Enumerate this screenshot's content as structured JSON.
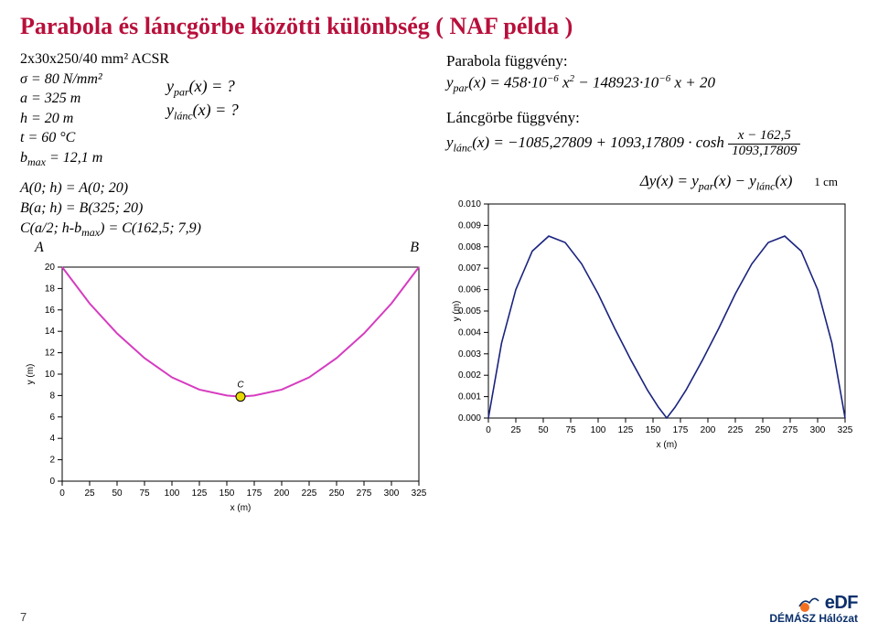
{
  "title": "Parabola és láncgörbe közötti különbség  ( NAF példa )",
  "left": {
    "spec": "2x30x250/40 mm² ACSR",
    "sigma": "σ = 80 N/mm²",
    "a": "a = 325 m",
    "h": "h = 20 m",
    "t": "t = 60 °C",
    "bmax": "bₘₐₓ = 12,1 m",
    "ypar_q": "y_par(x) = ?",
    "ylanc_q": "y_lánc(x) = ?",
    "ptA": "A(0; h) = A(0; 20)",
    "ptB": "B(a; h) = B(325; 20)",
    "ptC": "C(a/2; h-bₘₐₓ) = C(162,5; 7,9)",
    "A": "A",
    "B": "B",
    "C": "C",
    "chart": {
      "x_ticks": [
        0,
        25,
        50,
        75,
        100,
        125,
        150,
        175,
        200,
        225,
        250,
        275,
        300,
        325
      ],
      "y_ticks": [
        0,
        2,
        4,
        6,
        8,
        10,
        12,
        14,
        16,
        18,
        20
      ],
      "xlim": [
        0,
        325
      ],
      "ylim": [
        0,
        20
      ],
      "xlabel": "x (m)",
      "ylabel": "y (m)",
      "curve_color": "#d63cc0",
      "border_color": "#000000",
      "tick_color": "#000000",
      "marker_color": "#e6d800",
      "marker_stroke": "#000000",
      "series": [
        {
          "x": 0,
          "y": 20
        },
        {
          "x": 25,
          "y": 16.6
        },
        {
          "x": 50,
          "y": 13.8
        },
        {
          "x": 75,
          "y": 11.5
        },
        {
          "x": 100,
          "y": 9.7
        },
        {
          "x": 125,
          "y": 8.55
        },
        {
          "x": 150,
          "y": 8.0
        },
        {
          "x": 162.5,
          "y": 7.9
        },
        {
          "x": 175,
          "y": 8.0
        },
        {
          "x": 200,
          "y": 8.55
        },
        {
          "x": 225,
          "y": 9.7
        },
        {
          "x": 250,
          "y": 11.5
        },
        {
          "x": 275,
          "y": 13.8
        },
        {
          "x": 300,
          "y": 16.6
        },
        {
          "x": 325,
          "y": 20
        }
      ]
    }
  },
  "right": {
    "hdr1": "Parabola függvény:",
    "eq1": "y_par(x) = 458·10⁻⁶ x² − 148923·10⁻⁶ x + 20",
    "hdr2": "Láncgörbe függvény:",
    "eq2_lead": "y_lánc(x) = −1085,27809 + 1093,17809 · cosh",
    "eq2_frac_num": "x − 162,5",
    "eq2_frac_den": "1093,17809",
    "dy": "Δy(x) = y_par(x) − y_lánc(x)",
    "onecm": "1 cm",
    "chart": {
      "x_ticks": [
        0,
        25,
        50,
        75,
        100,
        125,
        150,
        175,
        200,
        225,
        250,
        275,
        300,
        325
      ],
      "y_ticks": [
        "0.000",
        "0.001",
        "0.002",
        "0.003",
        "0.004",
        "0.005",
        "0.006",
        "0.007",
        "0.008",
        "0.009",
        "0.010"
      ],
      "xlim": [
        0,
        325
      ],
      "ylim": [
        0,
        0.01
      ],
      "xlabel": "x (m)",
      "ylabel": "y (m)",
      "curve_color": "#1a237e",
      "border_color": "#000000",
      "series": [
        {
          "x": 0,
          "y": 0
        },
        {
          "x": 12,
          "y": 0.0035
        },
        {
          "x": 25,
          "y": 0.006
        },
        {
          "x": 40,
          "y": 0.0078
        },
        {
          "x": 55,
          "y": 0.0085
        },
        {
          "x": 70,
          "y": 0.0082
        },
        {
          "x": 85,
          "y": 0.0072
        },
        {
          "x": 100,
          "y": 0.0058
        },
        {
          "x": 115,
          "y": 0.0042
        },
        {
          "x": 130,
          "y": 0.0027
        },
        {
          "x": 145,
          "y": 0.0013
        },
        {
          "x": 155,
          "y": 0.0005
        },
        {
          "x": 162.5,
          "y": 0
        },
        {
          "x": 170,
          "y": 0.0005
        },
        {
          "x": 180,
          "y": 0.0013
        },
        {
          "x": 195,
          "y": 0.0027
        },
        {
          "x": 210,
          "y": 0.0042
        },
        {
          "x": 225,
          "y": 0.0058
        },
        {
          "x": 240,
          "y": 0.0072
        },
        {
          "x": 255,
          "y": 0.0082
        },
        {
          "x": 270,
          "y": 0.0085
        },
        {
          "x": 285,
          "y": 0.0078
        },
        {
          "x": 300,
          "y": 0.006
        },
        {
          "x": 313,
          "y": 0.0035
        },
        {
          "x": 325,
          "y": 0
        }
      ]
    }
  },
  "footer": {
    "page": "7",
    "brand": "eDF",
    "brand_sub": "DÉMÁSZ Hálózat",
    "logo_orange": "#f37021",
    "logo_blue": "#0a2f6b"
  }
}
